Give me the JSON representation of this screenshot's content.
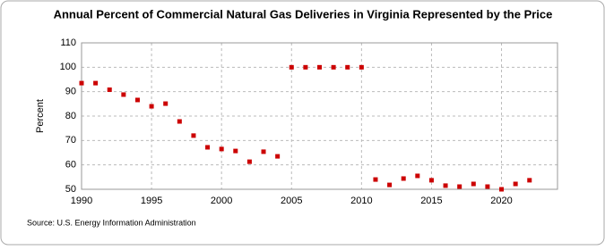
{
  "chart_data": {
    "type": "scatter",
    "title": "Annual Percent of Commercial Natural Gas Deliveries in Virginia Represented by the Price",
    "y_label": "Percent",
    "source": "Source: U.S. Energy Information Administration",
    "x": [
      1990,
      1991,
      1992,
      1993,
      1994,
      1995,
      1996,
      1997,
      1998,
      1999,
      2000,
      2001,
      2002,
      2003,
      2004,
      2005,
      2006,
      2007,
      2008,
      2009,
      2010,
      2011,
      2012,
      2013,
      2014,
      2015,
      2016,
      2017,
      2018,
      2019,
      2020,
      2021,
      2022
    ],
    "values": [
      93.5,
      93.5,
      90.8,
      88.8,
      86.6,
      84,
      85.1,
      77.8,
      72,
      67.2,
      66.5,
      65.7,
      61.3,
      65.4,
      63.5,
      100,
      100,
      100,
      100,
      100,
      100,
      54,
      51.8,
      54.4,
      55.5,
      53.7,
      51.5,
      51.1,
      52.2,
      51.1,
      50,
      52.2,
      53.7
    ],
    "color": "#cc0000",
    "xlim": [
      1990,
      2024
    ],
    "xticks": [
      1990,
      1995,
      2000,
      2005,
      2010,
      2015,
      2020
    ],
    "ylim": [
      50,
      110
    ],
    "yticks": [
      50,
      60,
      70,
      80,
      90,
      100,
      110
    ],
    "grid": true
  }
}
